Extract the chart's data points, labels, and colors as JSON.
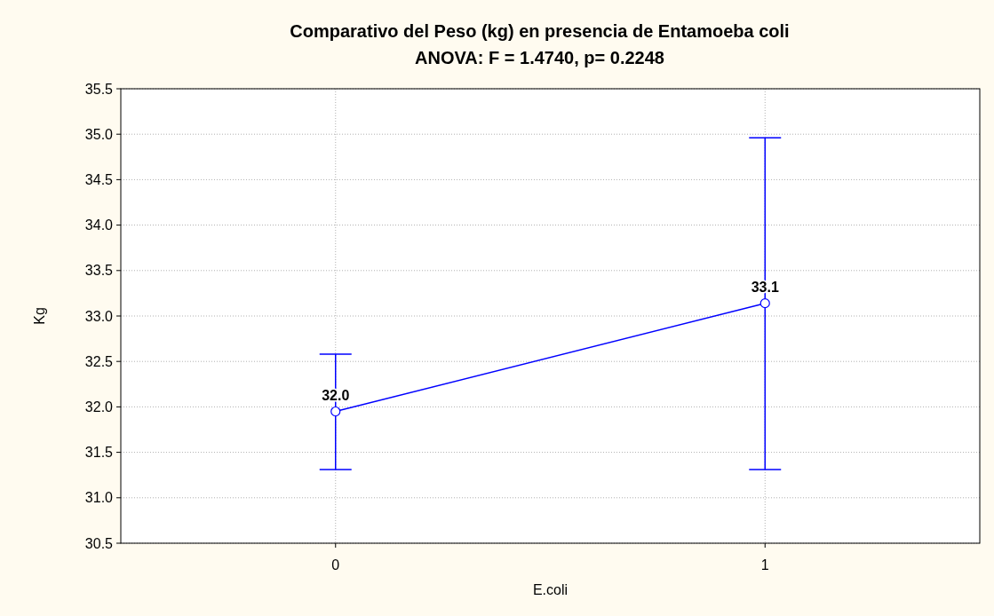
{
  "chart_data": {
    "type": "line",
    "title": "Comparativo del Peso (kg) en presencia de  Entamoeba coli",
    "subtitle": "ANOVA: F = 1.4740, p= 0.2248",
    "xlabel": "E.coli",
    "ylabel": "Kg",
    "categories": [
      "0",
      "1"
    ],
    "series": [
      {
        "color": "#0000ff",
        "values": [
          31.95,
          33.14
        ],
        "errors": [
          [
            31.31,
            32.58
          ],
          [
            31.31,
            34.96
          ]
        ],
        "value_labels": [
          "32.0",
          "33.1"
        ]
      }
    ],
    "ylim": [
      30.5,
      35.5
    ],
    "yticks": [
      {
        "value": 30.5,
        "label": "30.5"
      },
      {
        "value": 31,
        "label": "31.0"
      },
      {
        "value": 31.5,
        "label": "31.5"
      },
      {
        "value": 32,
        "label": "32.0"
      },
      {
        "value": 32.5,
        "label": "32.5"
      },
      {
        "value": 33,
        "label": "33.0"
      },
      {
        "value": 33.5,
        "label": "33.5"
      },
      {
        "value": 34,
        "label": "34.0"
      },
      {
        "value": 34.5,
        "label": "34.5"
      },
      {
        "value": 35,
        "label": "35.0"
      },
      {
        "value": 35.5,
        "label": "35.5"
      }
    ],
    "grid": true,
    "marker": "circle",
    "line_style": "solid"
  }
}
